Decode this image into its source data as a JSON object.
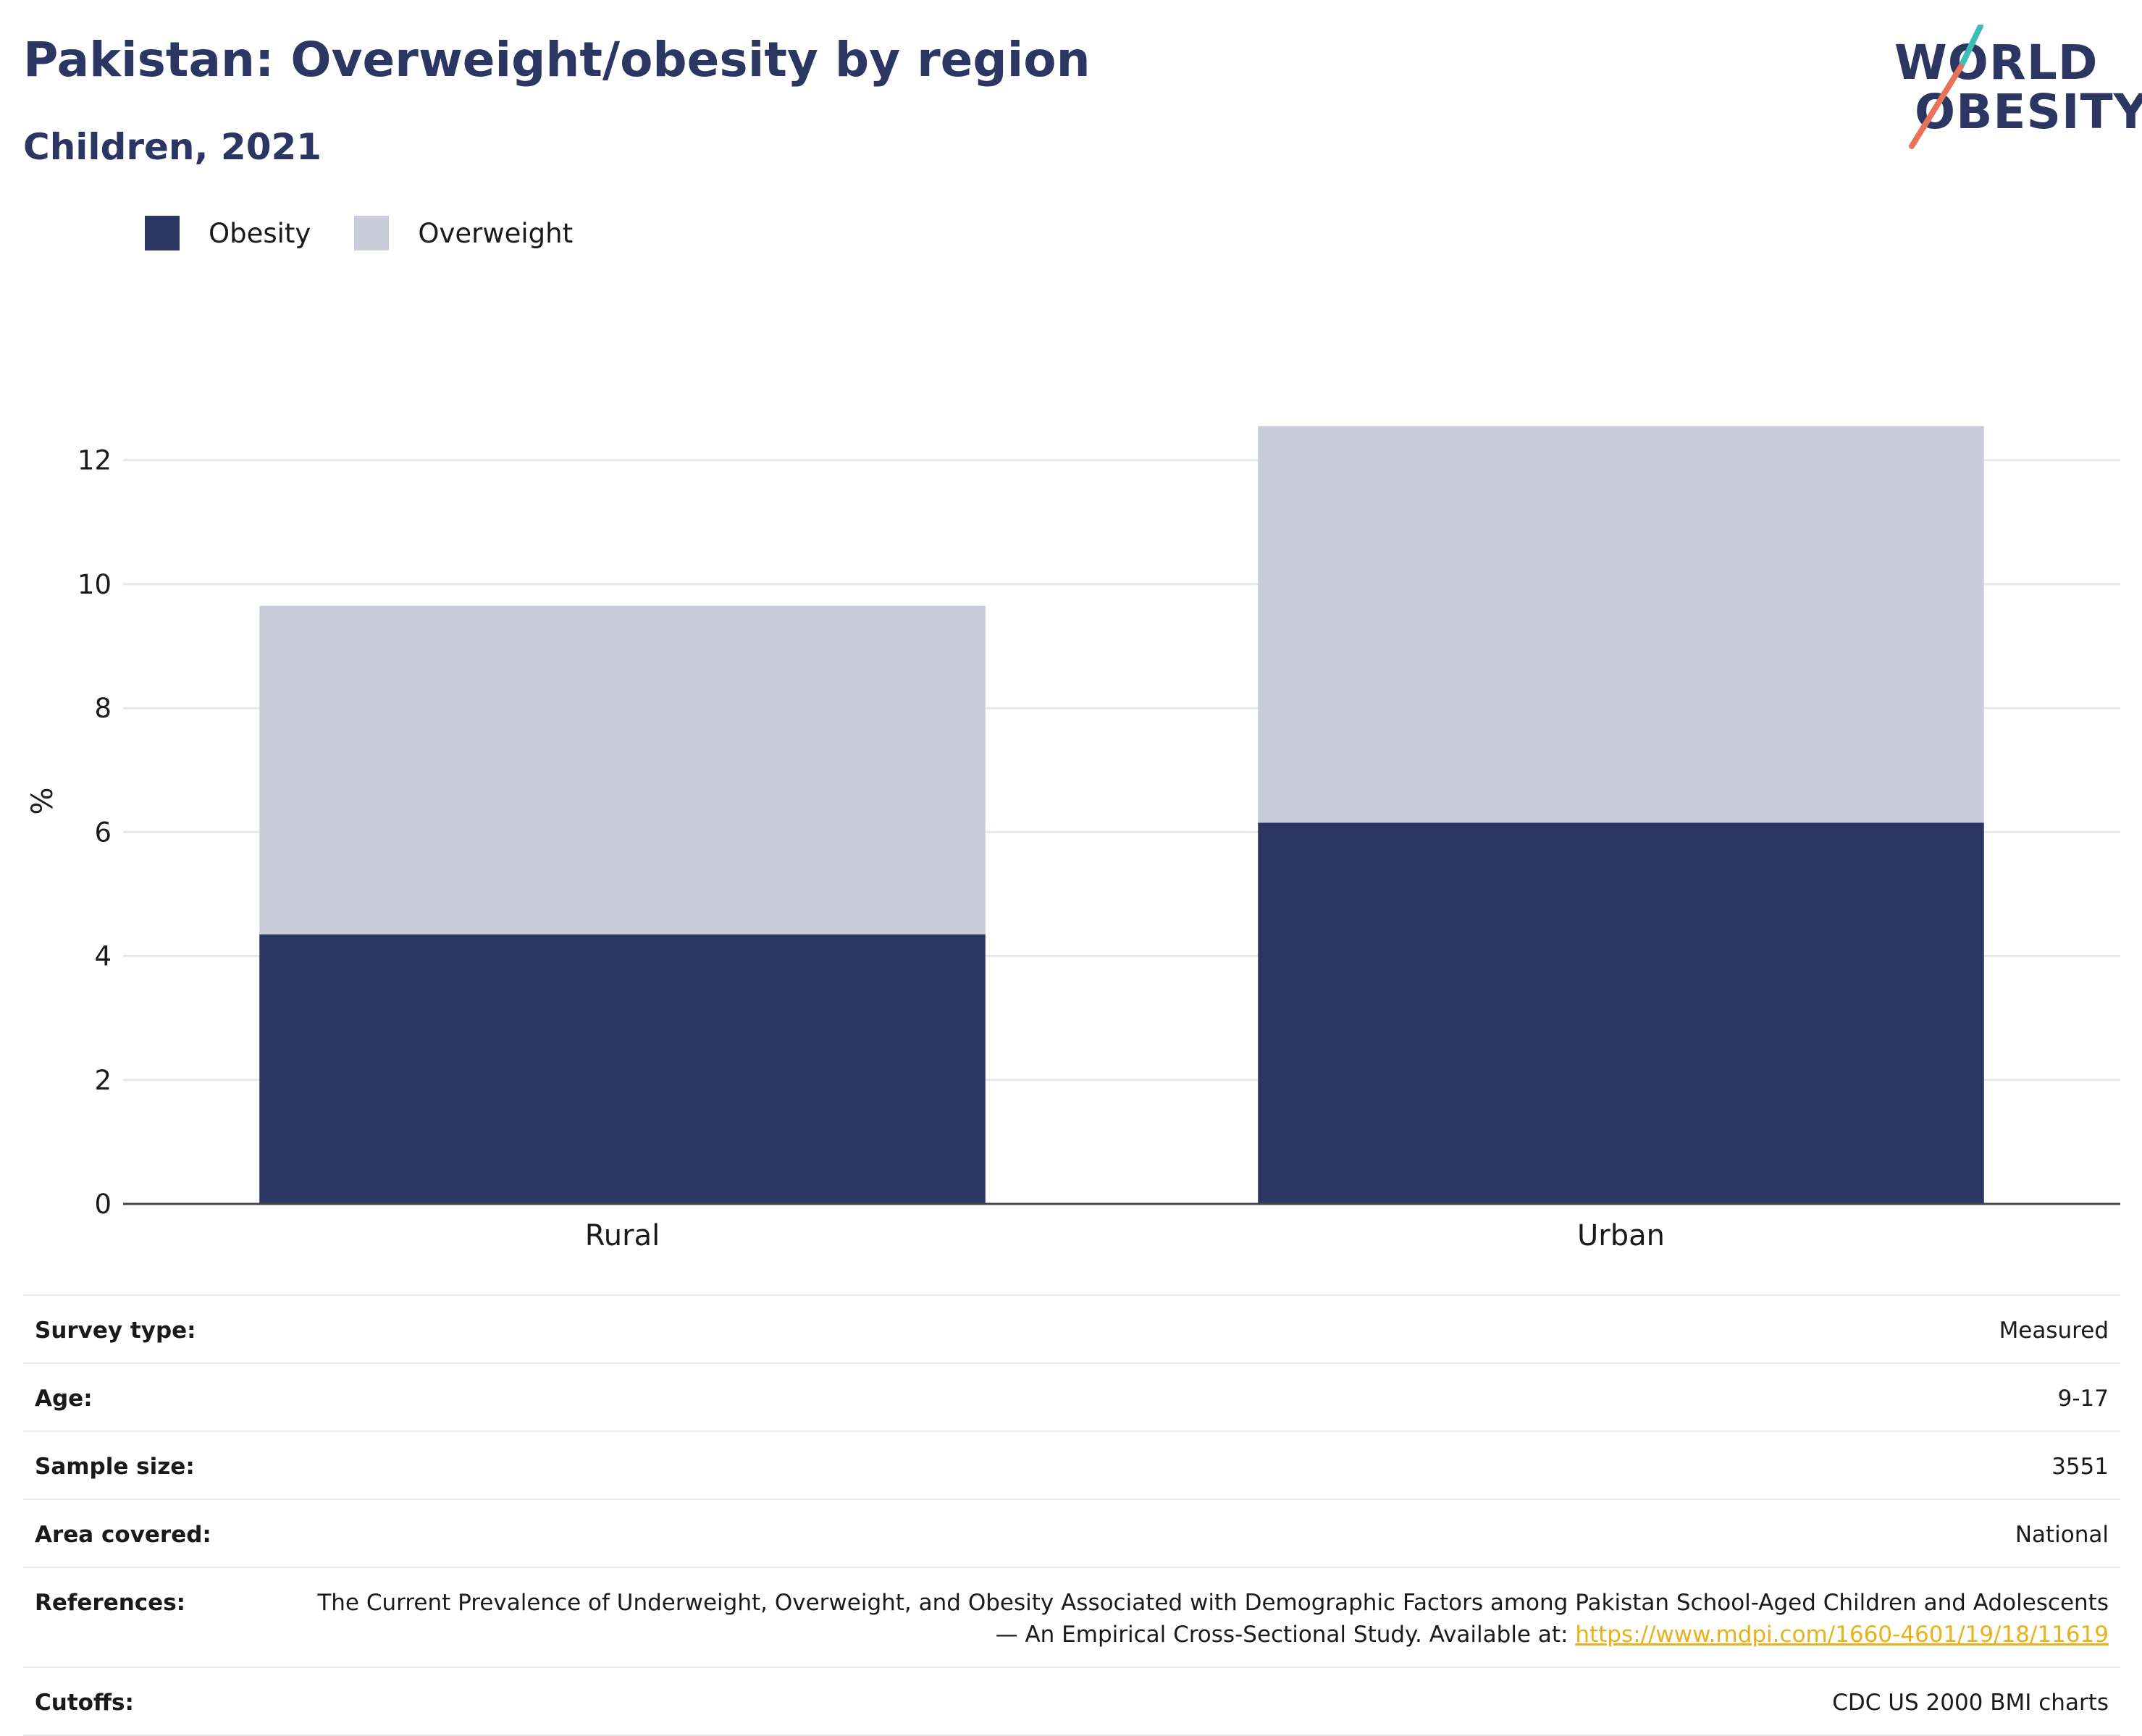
{
  "header": {
    "title": "Pakistan: Overweight/obesity by region",
    "subtitle": "Children, 2021"
  },
  "logo": {
    "line1": "WORLD",
    "line2": "OBESITY"
  },
  "legend": [
    {
      "label": "Obesity",
      "color": "#2b3663"
    },
    {
      "label": "Overweight",
      "color": "#cacdd8"
    }
  ],
  "chart_data": {
    "type": "bar",
    "stacked": true,
    "categories": [
      "Rural",
      "Urban"
    ],
    "series": [
      {
        "name": "Obesity",
        "values": [
          4.35,
          6.15
        ],
        "color": "#2b3663"
      },
      {
        "name": "Overweight",
        "values": [
          5.3,
          6.4
        ],
        "color": "#cacdd8"
      }
    ],
    "ylabel": "%",
    "ylim": [
      0,
      13
    ],
    "yticks": [
      0,
      2,
      4,
      6,
      8,
      10,
      12
    ],
    "grid": true,
    "legend_position": "top-left"
  },
  "meta": [
    {
      "key": "Survey type:",
      "value": "Measured"
    },
    {
      "key": "Age:",
      "value": "9-17"
    },
    {
      "key": "Sample size:",
      "value": "3551"
    },
    {
      "key": "Area covered:",
      "value": "National"
    },
    {
      "key": "References:",
      "value": "The Current Prevalence of Underweight, Overweight, and Obesity Associated with Demographic Factors among Pakistan School-Aged Children and Adolescents — An Empirical Cross-Sectional Study. Available at: ",
      "link": "https://www.mdpi.com/1660-4601/19/18/11619"
    },
    {
      "key": "Cutoffs:",
      "value": "CDC US 2000 BMI charts"
    }
  ]
}
